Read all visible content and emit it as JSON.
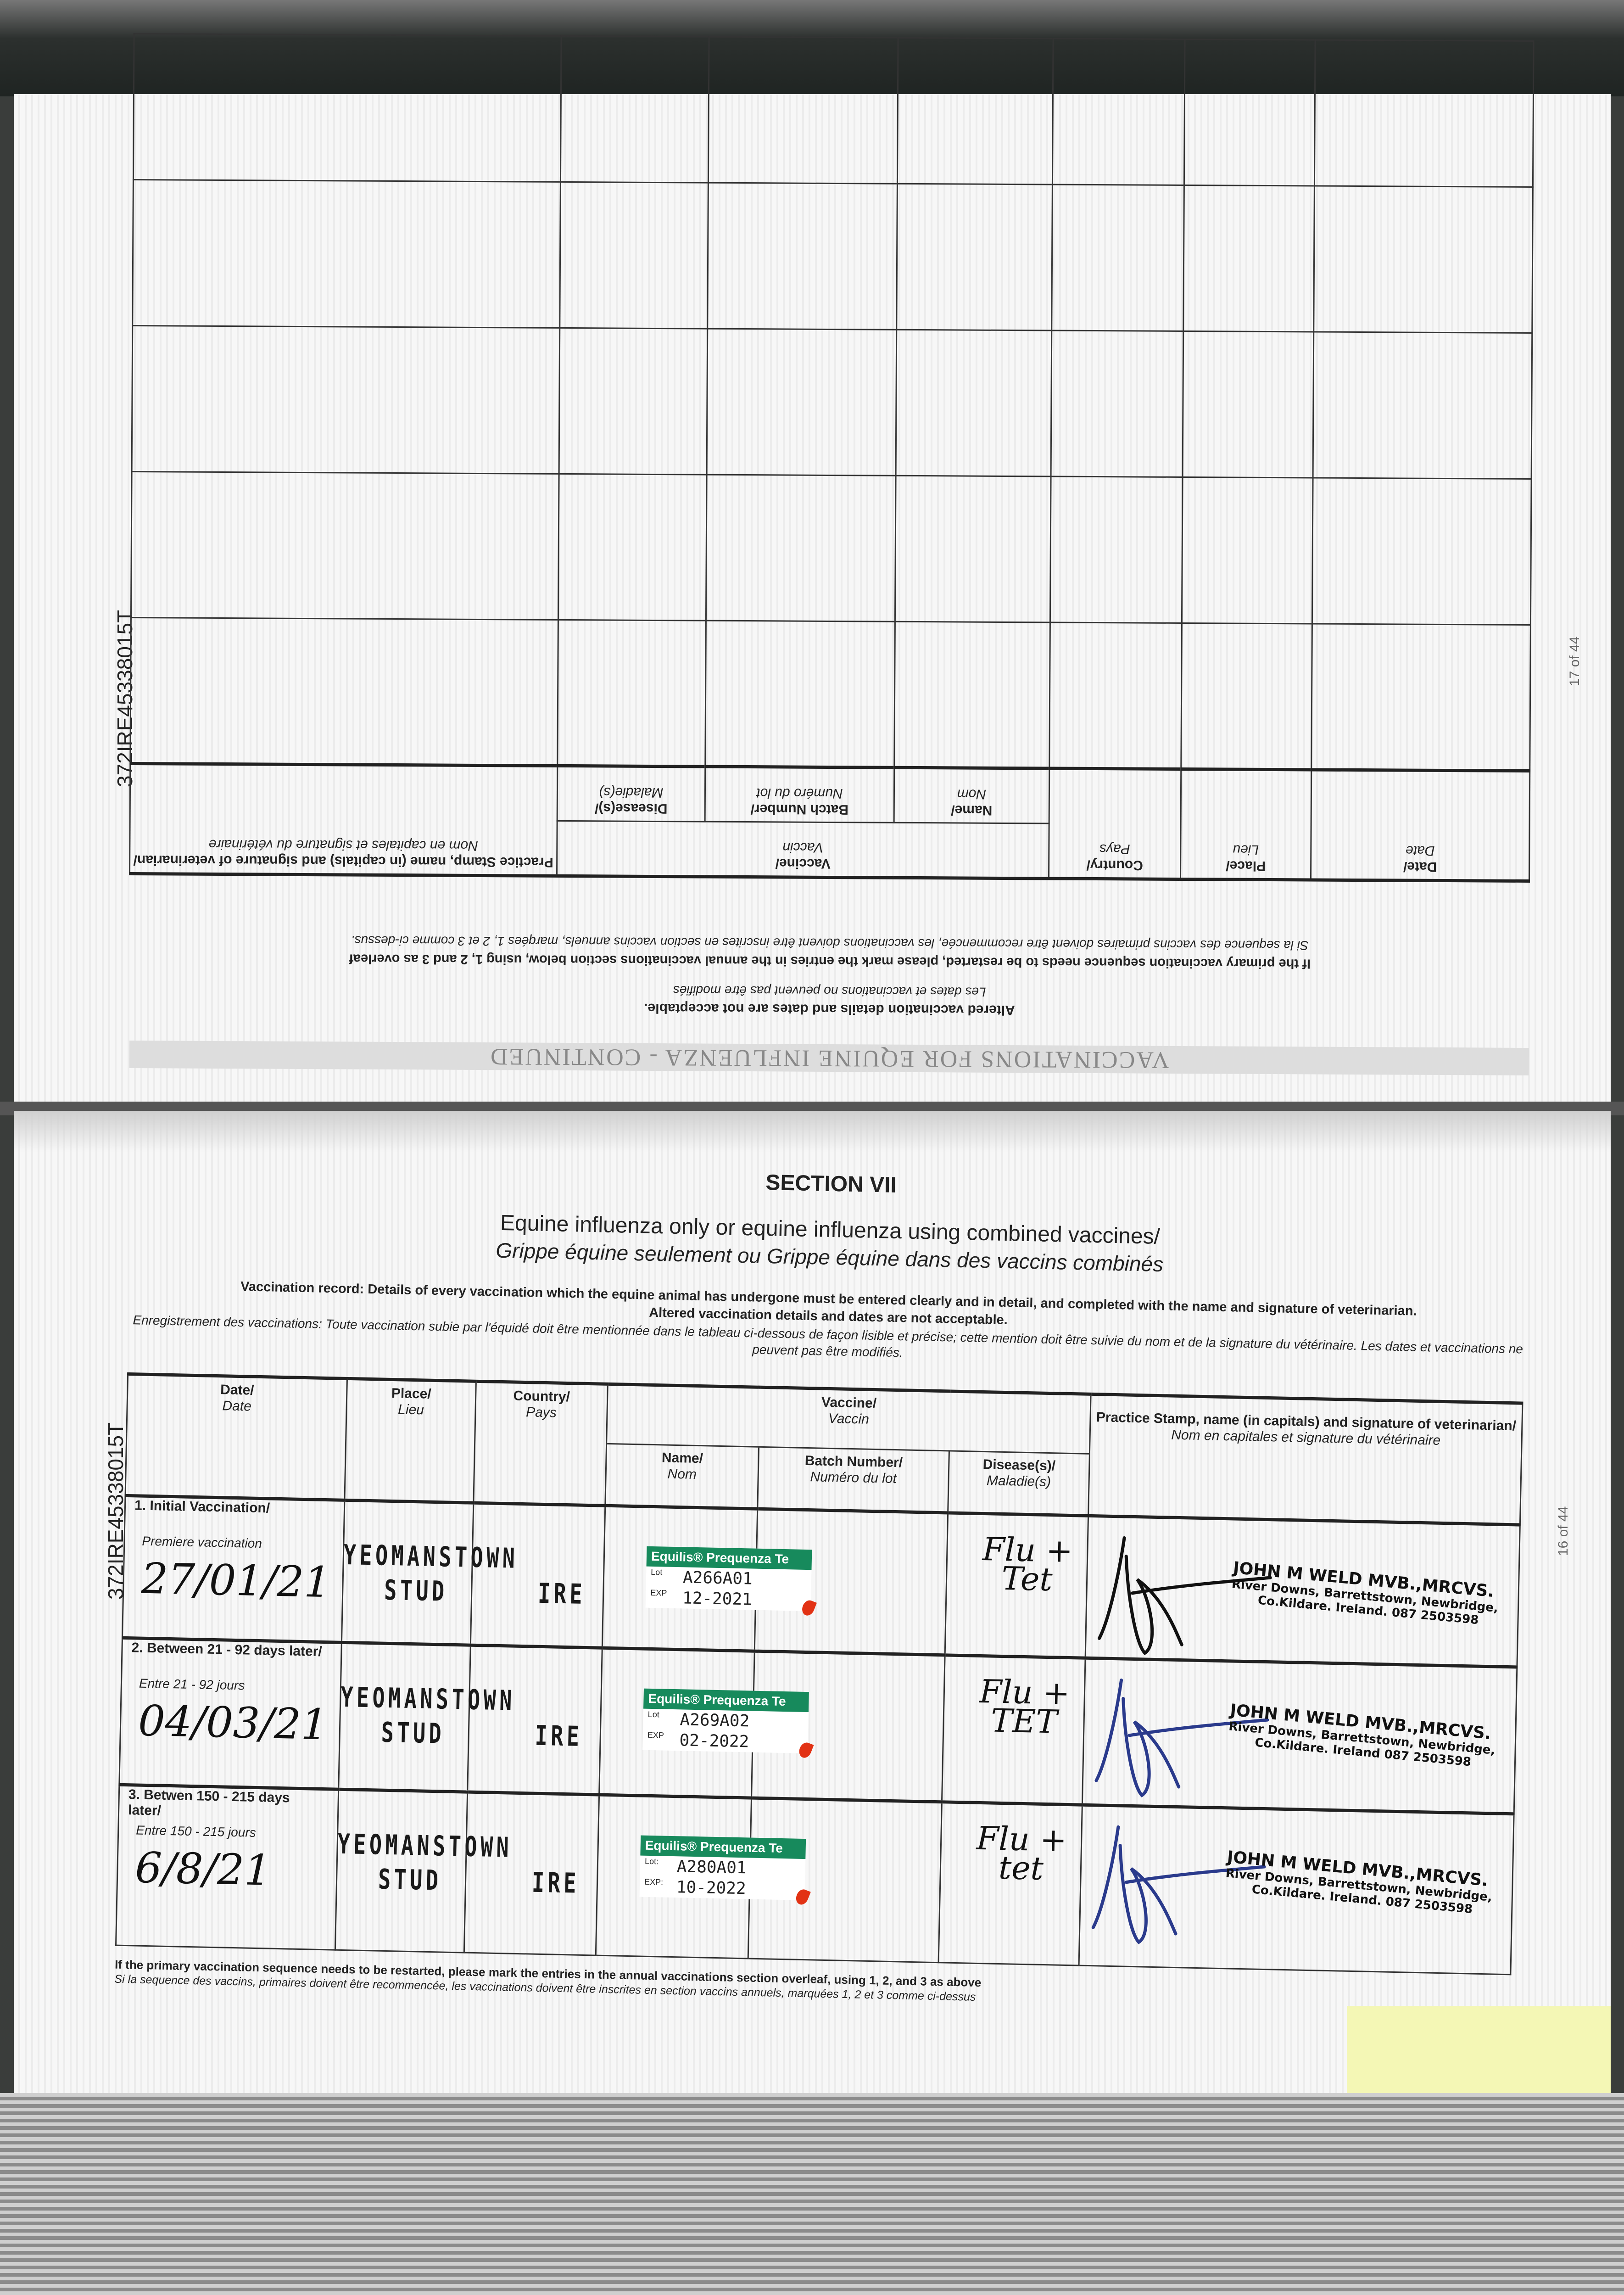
{
  "id_number": "372IRE45338015T",
  "upper_page": {
    "heading": "VACCINATIONS FOR EQUINE INFLUENZA - CONTINUED",
    "note_en_bold": "Altered vaccination details and dates are not acceptable.",
    "note_fr": "Les dates et vaccinations no peuvent pas être modifiés",
    "restart_en": "If the primary vaccination sequence needs to be restarted, please mark the entries in the annual vaccinations section below, using 1, 2 and 3 as overleaf",
    "restart_fr": "Si la sequence des vaccins primaires doivent être recommencée, les vaccinations doivent être inscrites en section vaccins annuels, marqées 1, 2 et 3 comme ci-dessus.",
    "page_number": "17 of 44",
    "columns": {
      "date": "Date/",
      "date_fr": "Date",
      "place": "Place/",
      "place_fr": "Lieu",
      "country": "Country/",
      "country_fr": "Pays",
      "vaccine": "Vaccine/",
      "vaccine_fr": "Vaccin",
      "name": "Name/",
      "name_fr": "Nom",
      "batch": "Batch Number/",
      "batch_fr": "Numéro du lot",
      "disease": "Disease(s)/",
      "disease_fr": "Maladie(s)",
      "stamp": "Practice Stamp, name (in capitals) and signature of veterinarian/",
      "stamp_fr": "Nom en capitales et signature du vétérinaire"
    },
    "empty_rows": 5
  },
  "lower_page": {
    "section": "SECTION VII",
    "title": "Equine influenza only or equine influenza using combined vaccines/",
    "subtitle": "Grippe équine seulement ou Grippe équine dans des vaccins combinés",
    "record_en": "Vaccination record: Details of every vaccination which the equine animal has undergone must be entered clearly and in detail, and completed with the name and signature of veterinarian.",
    "record_en2": "Altered vaccination details and dates are not acceptable.",
    "record_fr": "Enregistrement des vaccinations: Toute vaccination subie par l'équidé doit être mentionnée dans le tableau ci-dessous de façon lisible et précise; cette mention doit être suivie du nom et de la signature du vétérinaire. Les dates et vaccinations ne peuvent pas être modifiés.",
    "columns": {
      "date": "Date/",
      "date_fr": "Date",
      "place": "Place/",
      "place_fr": "Lieu",
      "country": "Country/",
      "country_fr": "Pays",
      "vaccine": "Vaccine/",
      "vaccine_fr": "Vaccin",
      "name": "Name/",
      "name_fr": "Nom",
      "batch": "Batch Number/",
      "batch_fr": "Numéro du lot",
      "disease": "Disease(s)/",
      "disease_fr": "Maladie(s)",
      "stamp": "Practice Stamp, name (in capitals) and signature of veterinarian/",
      "stamp_fr": "Nom en capitales et signature du vétérinaire"
    },
    "rows": [
      {
        "label": "1. Initial Vaccination/",
        "label_fr": "Premiere vaccination",
        "date": "27/01/21",
        "place_line1": "YEOMANSTOWN",
        "place_line2": "STUD",
        "country": "IRE",
        "vaccine_name": "Equilis® Prequenza Te",
        "lot_label": "Lot",
        "lot": "A266A01",
        "exp_label": "EXP",
        "exp": "12-2021",
        "disease": "Flu + Tet",
        "ink": "#111111",
        "vet_name": "JOHN M WELD  MVB.,MRCVS.",
        "vet_addr1": "River Downs, Barrettstown, Newbridge,",
        "vet_addr2": "Co.Kildare. Ireland.  087 2503598"
      },
      {
        "label": "2. Between 21 - 92 days later/",
        "label_fr": "Entre 21 - 92 jours",
        "date": "04/03/21",
        "place_line1": "YEOMANSTOWN",
        "place_line2": "STUD",
        "country": "IRE",
        "vaccine_name": "Equilis® Prequenza Te",
        "lot_label": "Lot",
        "lot": "A269A02",
        "exp_label": "EXP",
        "exp": "02-2022",
        "disease": "Flu + TET",
        "ink": "#2a3a8c",
        "vet_name": "JOHN M WELD  MVB.,MRCVS.",
        "vet_addr1": "River Downs, Barrettstown, Newbridge,",
        "vet_addr2": "Co.Kildare. Ireland  087 2503598"
      },
      {
        "label": "3. Betwen 150 - 215 days later/",
        "label_fr": "Entre 150 - 215 jours",
        "date": "6/8/21",
        "place_line1": "YEOMANSTOWN",
        "place_line2": "STUD",
        "country": "IRE",
        "vaccine_name": "Equilis® Prequenza Te",
        "lot_label": "Lot:",
        "lot": "A280A01",
        "exp_label": "EXP:",
        "exp": "10-2022",
        "disease": "Flu + tet",
        "ink": "#2a3a8c",
        "vet_name": "JOHN M WELD  MVB.,MRCVS.",
        "vet_addr1": "River Downs, Barrettstown, Newbridge,",
        "vet_addr2": "Co.Kildare. Ireland.  087 2503598"
      }
    ],
    "footer_en": "If the primary vaccination sequence needs to be restarted, please mark the entries in the annual vaccinations section overleaf, using 1, 2, and 3 as above",
    "footer_fr": "Si la sequence des vaccins, primaires doivent être recommencée, les vaccinations doivent être inscrites en section vaccins annuels, marquées 1, 2 et 3 comme ci-dessus",
    "page_number": "16 of 44"
  },
  "colors": {
    "sticker_green": "#178a5c",
    "highlight": "#f4f7b5",
    "blue_ink": "#2a3a8c"
  }
}
